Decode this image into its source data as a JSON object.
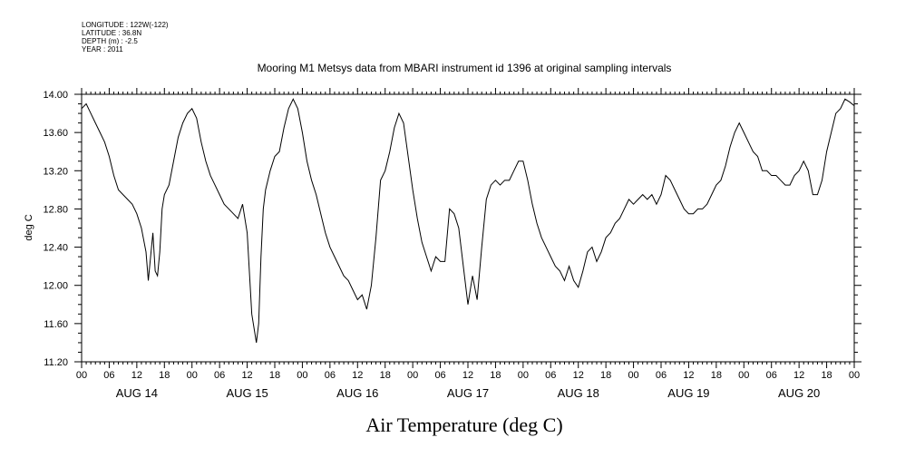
{
  "header": {
    "lines": [
      "LONGITUDE : 122W(-122)",
      "LATITUDE : 36.8N",
      "DEPTH (m) : -2.5",
      "YEAR : 2011"
    ]
  },
  "chart_data": {
    "type": "line",
    "title": "Mooring M1 Metsys data from MBARI instrument id 1396 at original sampling intervals",
    "xlabel": "Air Temperature (deg C)",
    "ylabel": "deg C",
    "ylim": [
      11.2,
      14.0
    ],
    "yticks": [
      "11.20",
      "11.60",
      "12.00",
      "12.40",
      "12.80",
      "13.20",
      "13.60",
      "14.00"
    ],
    "xlim_hours": [
      0,
      168
    ],
    "hour_tick_labels": [
      "00",
      "06",
      "12",
      "18",
      "00",
      "06",
      "12",
      "18",
      "00",
      "06",
      "12",
      "18",
      "00",
      "06",
      "12",
      "18",
      "00",
      "06",
      "12",
      "18",
      "00",
      "06",
      "12",
      "18",
      "00",
      "06",
      "12",
      "18",
      "00"
    ],
    "day_labels": [
      "AUG 14",
      "AUG 15",
      "AUG 16",
      "AUG 17",
      "AUG 18",
      "AUG 19",
      "AUG 20"
    ],
    "grid": false,
    "line_color": "#000000",
    "series": [
      {
        "x": [
          0,
          1,
          2,
          3,
          4,
          5,
          6,
          7,
          8,
          9,
          10,
          11,
          12,
          13,
          14,
          14.5,
          15,
          15.5,
          16,
          16.5,
          17,
          17.5,
          18,
          19,
          20,
          21,
          22,
          23,
          24,
          25,
          26,
          27,
          28,
          29,
          30,
          31,
          32,
          33,
          34,
          35,
          36,
          37,
          38,
          38.5,
          39,
          39.5,
          40,
          41,
          42,
          43,
          44,
          45,
          46,
          47,
          48,
          49,
          50,
          51,
          52,
          53,
          54,
          55,
          56,
          57,
          58,
          59,
          60,
          61,
          62,
          63,
          64,
          65,
          66,
          67,
          68,
          69,
          70,
          71,
          72,
          73,
          74,
          75,
          76,
          77,
          78,
          79,
          80,
          81,
          82,
          83,
          84,
          85,
          86,
          87,
          88,
          89,
          90,
          91,
          92,
          93,
          94,
          95,
          96,
          97,
          98,
          99,
          100,
          101,
          102,
          103,
          104,
          105,
          106,
          107,
          108,
          109,
          110,
          111,
          112,
          113,
          114,
          115,
          116,
          117,
          118,
          119,
          120,
          121,
          122,
          123,
          124,
          125,
          126,
          127,
          128,
          129,
          130,
          131,
          132,
          133,
          134,
          135,
          136,
          137,
          138,
          139,
          140,
          141,
          142,
          143,
          144,
          145,
          146,
          147,
          148,
          149,
          150,
          151,
          152,
          153,
          154,
          155,
          156,
          157,
          158,
          159,
          160,
          161,
          162,
          163,
          164,
          165,
          166,
          167,
          168
        ],
        "values": [
          13.85,
          13.9,
          13.8,
          13.7,
          13.6,
          13.5,
          13.35,
          13.15,
          13.0,
          12.95,
          12.9,
          12.85,
          12.75,
          12.6,
          12.35,
          12.05,
          12.3,
          12.55,
          12.15,
          12.1,
          12.35,
          12.8,
          12.95,
          13.05,
          13.3,
          13.55,
          13.7,
          13.8,
          13.85,
          13.75,
          13.5,
          13.3,
          13.15,
          13.05,
          12.95,
          12.85,
          12.8,
          12.75,
          12.7,
          12.85,
          12.55,
          11.7,
          11.4,
          11.6,
          12.3,
          12.8,
          13.0,
          13.2,
          13.35,
          13.4,
          13.65,
          13.85,
          13.95,
          13.85,
          13.6,
          13.3,
          13.1,
          12.95,
          12.75,
          12.55,
          12.4,
          12.3,
          12.2,
          12.1,
          12.05,
          11.95,
          11.85,
          11.9,
          11.75,
          12.0,
          12.5,
          13.1,
          13.2,
          13.4,
          13.65,
          13.8,
          13.7,
          13.35,
          13.0,
          12.7,
          12.45,
          12.3,
          12.15,
          12.3,
          12.25,
          12.25,
          12.8,
          12.75,
          12.6,
          12.2,
          11.8,
          12.1,
          11.85,
          12.4,
          12.9,
          13.05,
          13.1,
          13.05,
          13.1,
          13.1,
          13.2,
          13.3,
          13.3,
          13.1,
          12.85,
          12.65,
          12.5,
          12.4,
          12.3,
          12.2,
          12.15,
          12.05,
          12.2,
          12.05,
          11.98,
          12.15,
          12.35,
          12.4,
          12.25,
          12.35,
          12.5,
          12.55,
          12.65,
          12.7,
          12.8,
          12.9,
          12.85,
          12.9,
          12.95,
          12.9,
          12.95,
          12.85,
          12.95,
          13.15,
          13.1,
          13.0,
          12.9,
          12.8,
          12.75,
          12.75,
          12.8,
          12.8,
          12.85,
          12.95,
          13.05,
          13.1,
          13.25,
          13.45,
          13.6,
          13.7,
          13.6,
          13.5,
          13.4,
          13.35,
          13.2,
          13.2,
          13.15,
          13.15,
          13.1,
          13.05,
          13.05,
          13.15,
          13.2,
          13.3,
          13.2,
          12.95,
          12.95,
          13.1,
          13.4,
          13.6,
          13.8,
          13.85,
          13.95,
          13.92,
          13.88
        ]
      }
    ]
  }
}
